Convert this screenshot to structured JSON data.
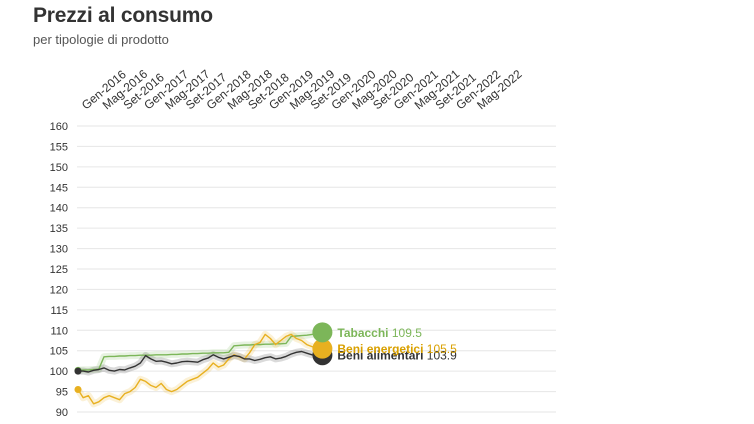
{
  "header": {
    "title": "Prezzi al consumo",
    "subtitle": "per tipologie di prodotto"
  },
  "colors": {
    "tabacchi": "#7cb659",
    "beni_energetici": "#e8b020",
    "beni_alimentari": "#333333",
    "grid": "#e6e6e6"
  },
  "chart_data": {
    "type": "line",
    "title": "Prezzi al consumo",
    "subtitle": "per tipologie di prodotto",
    "xlabel": "",
    "ylabel": "",
    "ylim": [
      90,
      160
    ],
    "yticks": [
      90,
      95,
      100,
      105,
      110,
      115,
      120,
      125,
      130,
      135,
      140,
      145,
      150,
      155,
      160
    ],
    "x_tick_labels": [
      "Gen-2016",
      "Mag-2016",
      "Set-2016",
      "Gen-2017",
      "Mag-2017",
      "Set-2017",
      "Gen-2018",
      "Mag-2018",
      "Set-2018",
      "Gen-2019",
      "Mag-2019",
      "Set-2019",
      "Gen-2020",
      "Mag-2020",
      "Set-2020",
      "Gen-2021",
      "Mag-2021",
      "Set-2021",
      "Gen-2022",
      "Mag-2022"
    ],
    "x_start": "Gen-2016",
    "grid": true,
    "legend": "end-of-line labels",
    "series": [
      {
        "name": "Tabacchi",
        "key": "tabacchi",
        "end_label_value": "109.5",
        "values": [
          100.2,
          100.3,
          100.3,
          100.4,
          100.5,
          103.5,
          103.6,
          103.6,
          103.7,
          103.7,
          103.8,
          103.8,
          103.9,
          103.9,
          103.9,
          104.0,
          104.0,
          104.0,
          104.1,
          104.1,
          104.2,
          104.2,
          104.3,
          104.3,
          104.4,
          104.4,
          104.5,
          104.5,
          104.5,
          104.6,
          106.2,
          106.3,
          106.4,
          106.4,
          106.5,
          106.5,
          106.6,
          106.6,
          106.7,
          106.7,
          106.8,
          108.5,
          108.6,
          108.7,
          108.8,
          109.0,
          109.2,
          109.5
        ]
      },
      {
        "name": "Beni energetici",
        "key": "beni_energetici",
        "end_label_value": "105.5",
        "values": [
          95.5,
          93.5,
          94.0,
          92.0,
          92.5,
          93.5,
          94.0,
          93.5,
          93.0,
          94.5,
          95.0,
          96.0,
          98.0,
          97.5,
          96.5,
          96.0,
          97.0,
          95.5,
          95.0,
          95.5,
          96.5,
          97.5,
          98.0,
          98.5,
          99.5,
          100.5,
          102.0,
          101.0,
          101.5,
          103.0,
          104.0,
          103.5,
          103.0,
          104.5,
          106.5,
          107.0,
          109.0,
          108.0,
          106.5,
          107.5,
          108.5,
          109.0,
          108.0,
          107.5,
          106.5,
          106.0,
          105.5,
          105.5
        ]
      },
      {
        "name": "Beni alimentari",
        "key": "beni_alimentari",
        "end_label_value": "103.9",
        "values": [
          100.0,
          100.0,
          99.8,
          100.2,
          100.4,
          100.8,
          100.2,
          100.0,
          100.4,
          100.3,
          100.8,
          101.2,
          102.0,
          103.8,
          103.0,
          102.4,
          102.5,
          102.2,
          101.8,
          102.0,
          102.3,
          102.4,
          102.3,
          102.2,
          102.8,
          103.2,
          104.0,
          103.4,
          103.0,
          103.4,
          103.8,
          103.6,
          103.0,
          103.0,
          102.6,
          102.9,
          103.3,
          103.5,
          103.0,
          103.2,
          103.6,
          104.2,
          104.6,
          104.8,
          104.4,
          104.0,
          103.9,
          103.9
        ]
      }
    ]
  }
}
